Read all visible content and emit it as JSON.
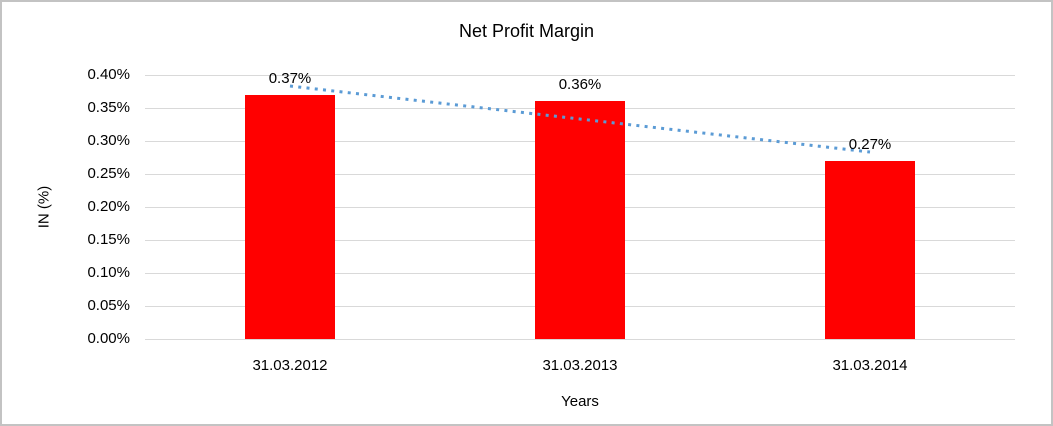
{
  "frame": {
    "background_color": "#ffffff",
    "border_color": "#c3c3c3"
  },
  "chart_data": {
    "type": "bar",
    "title": "Net Profit Margin",
    "xlabel": "Years",
    "ylabel": "IN (%)",
    "categories": [
      "31.03.2012",
      "31.03.2013",
      "31.03.2014"
    ],
    "values": [
      0.37,
      0.36,
      0.27
    ],
    "data_labels": [
      "0.37%",
      "0.36%",
      "0.27%"
    ],
    "ylim": [
      0,
      0.4
    ],
    "y_tick_step": 0.05,
    "y_tick_labels": [
      "0.00%",
      "0.05%",
      "0.10%",
      "0.15%",
      "0.20%",
      "0.25%",
      "0.30%",
      "0.35%",
      "0.40%"
    ],
    "grid": true,
    "legend": "none",
    "bar_color": "#ff0000",
    "gridline_color": "#d9d9d9",
    "text_color": "#000000",
    "trendline": {
      "kind": "linear",
      "style": "dotted",
      "color": "#5b9bd5",
      "start_value": 0.3833,
      "end_value": 0.2833
    }
  }
}
